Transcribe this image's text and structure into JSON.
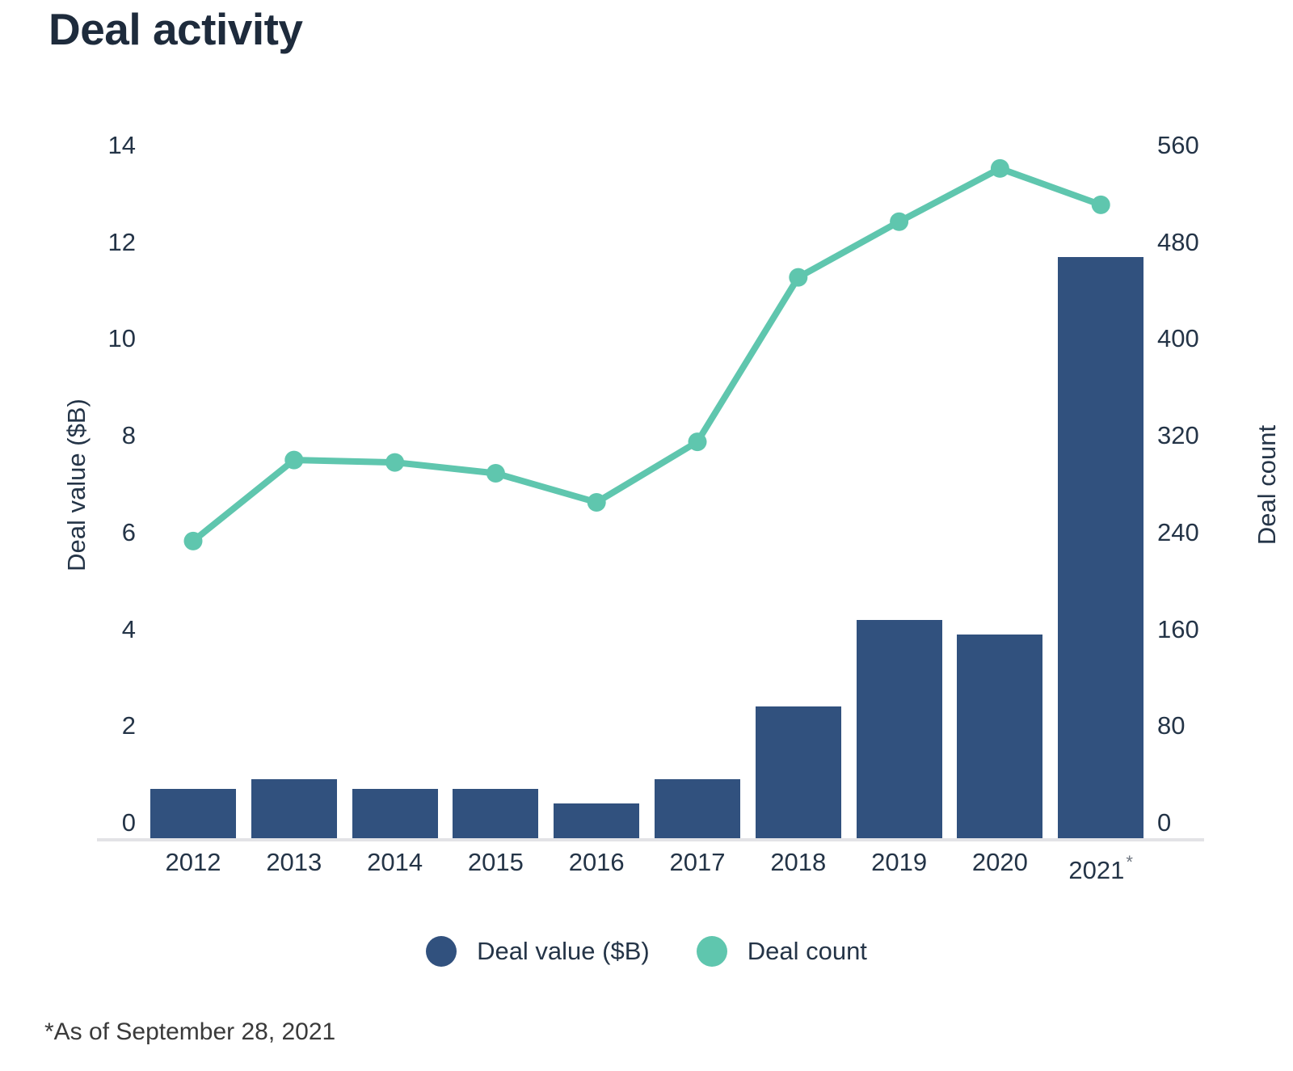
{
  "title": "Deal activity",
  "footnote": "*As of September 28, 2021",
  "legend": [
    {
      "label": "Deal value ($B)",
      "color": "#31517E"
    },
    {
      "label": "Deal count",
      "color": "#5FC6AE"
    }
  ],
  "colors": {
    "bar": "#31517E",
    "line": "#5FC6AE",
    "axis_line": "#E3E3E6",
    "tick_text": "#243447",
    "title_text": "#1E2B3C",
    "footnote_text": "#3A3A3A"
  },
  "chart_data": {
    "type": "bar",
    "subtype": "combo-bar-line-dual-axis",
    "title": "Deal activity",
    "categories": [
      "2012",
      "2013",
      "2014",
      "2015",
      "2016",
      "2017",
      "2018",
      "2019",
      "2020",
      "2021*"
    ],
    "series": [
      {
        "name": "Deal value ($B)",
        "type": "bar",
        "axis": "left",
        "color": "#31517E",
        "values": [
          0.7,
          0.9,
          0.7,
          0.7,
          0.4,
          0.9,
          2.4,
          4.2,
          3.9,
          11.7
        ]
      },
      {
        "name": "Deal count",
        "type": "line",
        "axis": "right",
        "color": "#5FC6AE",
        "values": [
          233,
          300,
          298,
          289,
          265,
          315,
          451,
          497,
          541,
          511
        ]
      }
    ],
    "left_axis": {
      "label": "Deal value ($B)",
      "ticks": [
        0,
        2,
        4,
        6,
        8,
        10,
        12,
        14
      ],
      "range": [
        0,
        14
      ]
    },
    "right_axis": {
      "label": "Deal count",
      "ticks": [
        0,
        80,
        160,
        240,
        320,
        400,
        480,
        560
      ],
      "range": [
        0,
        560
      ]
    },
    "grid": false,
    "legend_position": "bottom",
    "annotations": [
      "*As of September 28, 2021"
    ]
  }
}
